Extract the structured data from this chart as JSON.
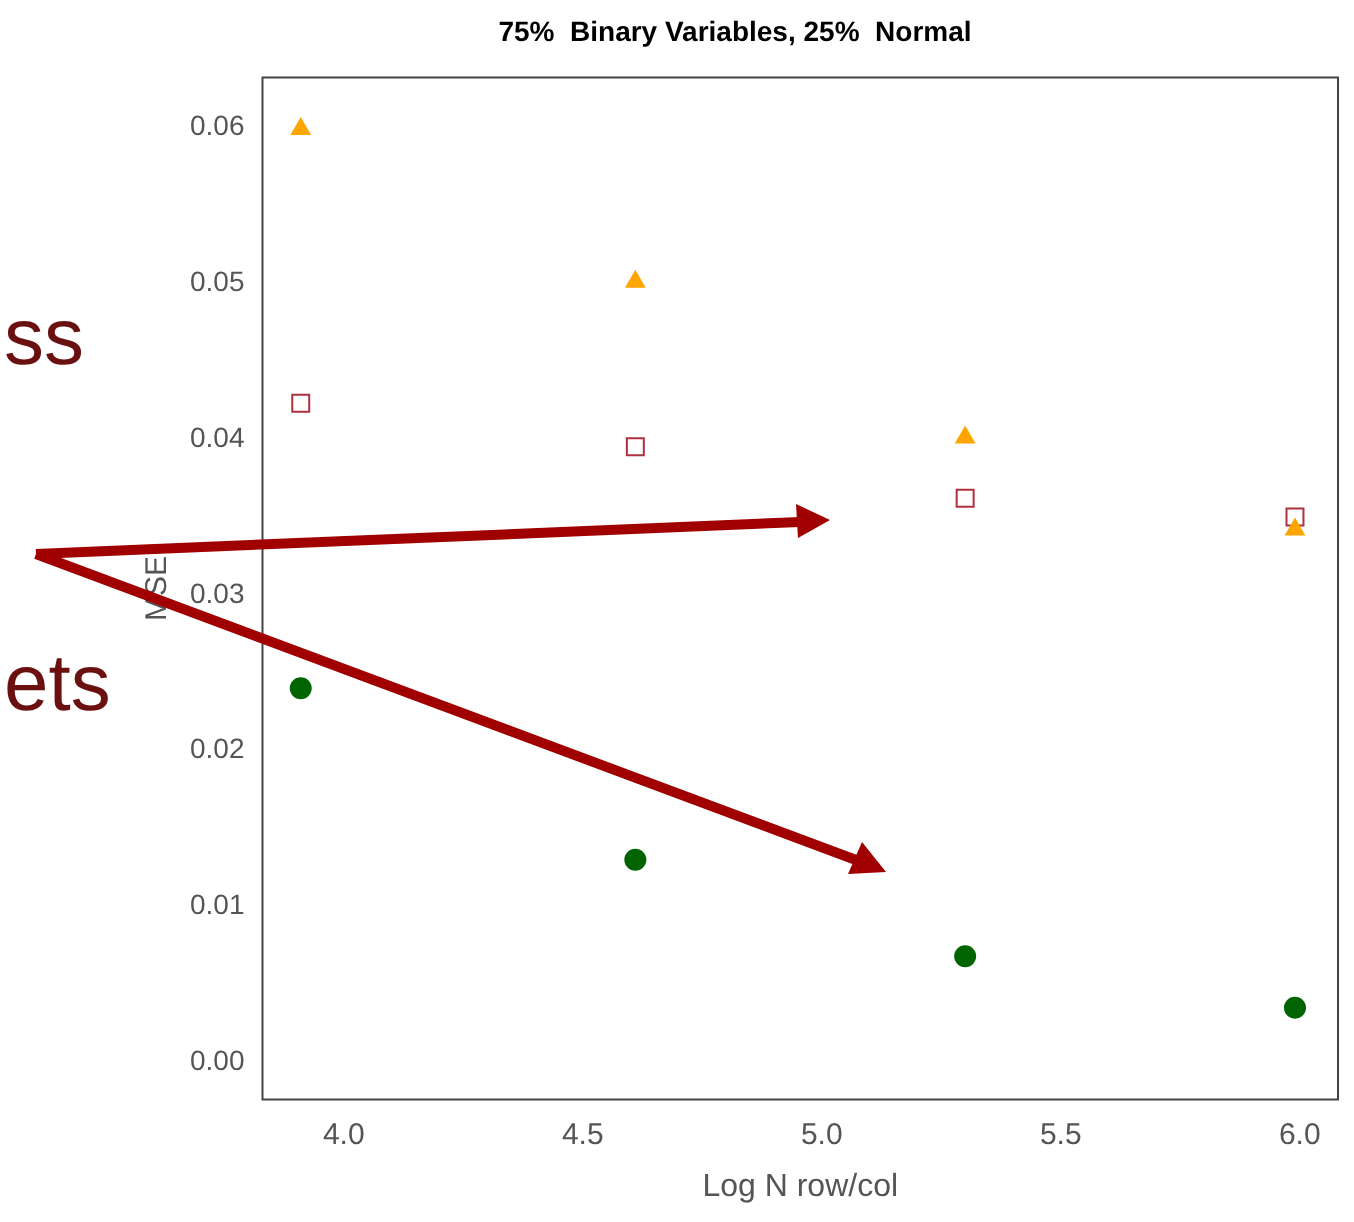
{
  "chart_data": {
    "type": "scatter",
    "title": "75%  Binary Variables, 25%  Normal",
    "xlabel": "Log N row/col",
    "ylabel": "MSE",
    "annotations": [
      "ss",
      "ets"
    ],
    "x": [
      3.91,
      4.61,
      5.3,
      5.99
    ],
    "series": [
      {
        "color": "#ffa500",
        "marker": "triangle",
        "values": [
          0.0599,
          0.0501,
          0.0401,
          0.0342
        ]
      },
      {
        "color": "#b03040",
        "marker": "square",
        "values": [
          0.0423,
          0.0395,
          0.0362,
          0.035
        ]
      },
      {
        "color": "#006400",
        "marker": "circle",
        "values": [
          0.024,
          0.013,
          0.0068,
          0.0035
        ]
      }
    ],
    "xlim": [
      3.83,
      6.08
    ],
    "ylim": [
      -0.0024,
      0.0632
    ],
    "xticks": [
      {
        "value": 4,
        "label": "4.0"
      },
      {
        "value": 4.5,
        "label": "4.5"
      },
      {
        "value": 5,
        "label": "5.0"
      },
      {
        "value": 5.5,
        "label": "5.5"
      },
      {
        "value": 6,
        "label": "6.0"
      }
    ],
    "yticks": [
      {
        "value": 0,
        "label": "0.00"
      },
      {
        "value": 0.01,
        "label": "0.01"
      },
      {
        "value": 0.02,
        "label": "0.02"
      },
      {
        "value": 0.03,
        "label": "0.03"
      },
      {
        "value": 0.04,
        "label": "0.04"
      },
      {
        "value": 0.05,
        "label": "0.05"
      },
      {
        "value": 0.06,
        "label": "0.06"
      }
    ],
    "grid": false,
    "legend": false
  }
}
